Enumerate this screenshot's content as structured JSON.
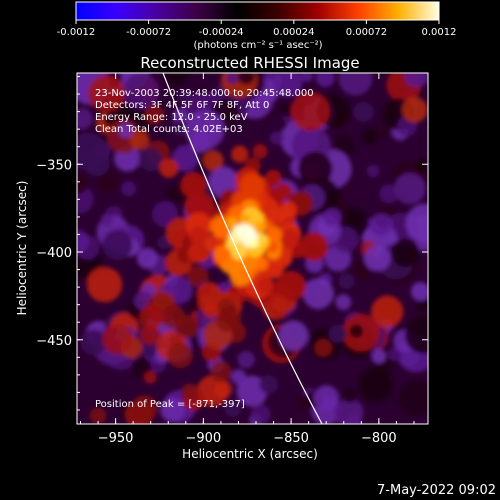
{
  "colorbar": {
    "tick_labels": [
      "-0.0012",
      "-0.00072",
      "-0.00024",
      "0.00024",
      "0.00072",
      "0.0012"
    ],
    "units_label": "(photons cm⁻² s⁻¹ asec⁻²)",
    "colors": [
      "#0000ff",
      "#3a00ff",
      "#4a00a0",
      "#3c0045",
      "#000000",
      "#3b0000",
      "#a00000",
      "#ff4000",
      "#ffb000",
      "#ffffe0"
    ]
  },
  "plot": {
    "title": "Reconstructed RHESSI Image",
    "info_lines": [
      "23-Nov-2003 20:39:48.000 to 20:45:48.000",
      "Detectors: 3F 4F 5F 6F 7F 8F, Att 0",
      "Energy Range: 12.0 - 25.0 keV",
      "Clean    Total counts: 4.02E+03"
    ],
    "peak_label": "Position of Peak = [-871,-397]",
    "x_label": "Heliocentric X (arcsec)",
    "y_label": "Heliocentric Y (arcsec)",
    "x_ticks": [
      "-950",
      "-900",
      "-850",
      "-800"
    ],
    "y_ticks": [
      "-350",
      "-400",
      "-450"
    ],
    "x_range": [
      -972,
      -772
    ],
    "y_range": [
      -298,
      -498
    ],
    "peak": {
      "x": -871,
      "y": -397
    }
  },
  "footer": {
    "timestamp": "7-May-2022 09:02"
  }
}
